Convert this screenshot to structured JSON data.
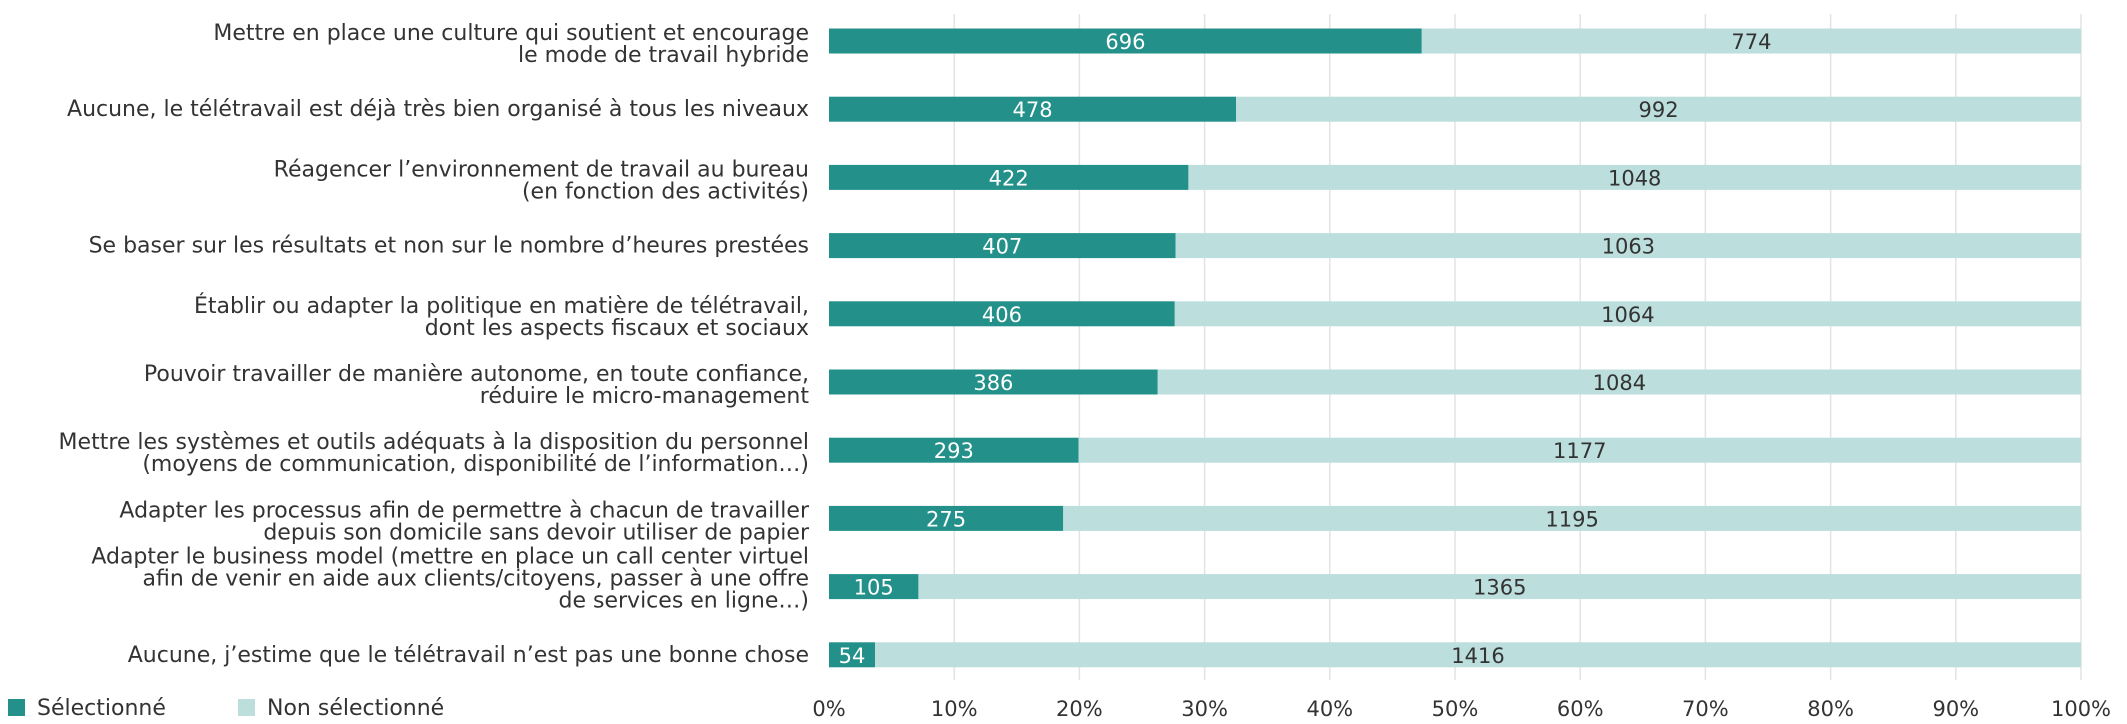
{
  "chart_data": {
    "type": "bar",
    "orientation": "horizontal",
    "stacked": "percent",
    "categories": [
      [
        "Mettre en place une culture qui soutient et encourage",
        "le mode de travail hybride"
      ],
      [
        "Aucune, le télétravail est déjà très bien organisé à tous les niveaux"
      ],
      [
        "Réagencer l’environnement de travail au bureau",
        "(en fonction des activités)"
      ],
      [
        "Se baser sur les résultats et non sur le nombre d’heures prestées"
      ],
      [
        "Établir ou adapter la politique en matière de télétravail,",
        "dont les aspects fiscaux et sociaux"
      ],
      [
        "Pouvoir travailler de manière autonome, en toute confiance,",
        "réduire le micro-management"
      ],
      [
        "Mettre les systèmes et outils adéquats à la disposition du personnel",
        "(moyens de communication, disponibilité de l’information…)"
      ],
      [
        "Adapter les processus afin de permettre à chacun de travailler",
        "depuis son domicile sans devoir utiliser de papier"
      ],
      [
        "Adapter le business model (mettre en place un call center virtuel",
        "afin de venir en aide aux clients/citoyens, passer à une offre",
        "de services en ligne…)"
      ],
      [
        "Aucune, j’estime que le télétravail n’est pas une bonne chose"
      ]
    ],
    "series": [
      {
        "name": "Sélectionné",
        "color": "#23918a",
        "label_color": "#ffffff",
        "values": [
          696,
          478,
          422,
          407,
          406,
          386,
          293,
          275,
          105,
          54
        ]
      },
      {
        "name": "Non sélectionné",
        "color": "#bcdedd",
        "label_color": "#333333",
        "values": [
          774,
          992,
          1048,
          1063,
          1064,
          1084,
          1177,
          1195,
          1365,
          1416
        ]
      }
    ],
    "x_ticks": [
      "0%",
      "10%",
      "20%",
      "30%",
      "40%",
      "50%",
      "60%",
      "70%",
      "80%",
      "90%",
      "100%"
    ],
    "xlim": [
      0,
      100
    ],
    "grid": true,
    "legend_position": "bottom-left"
  }
}
